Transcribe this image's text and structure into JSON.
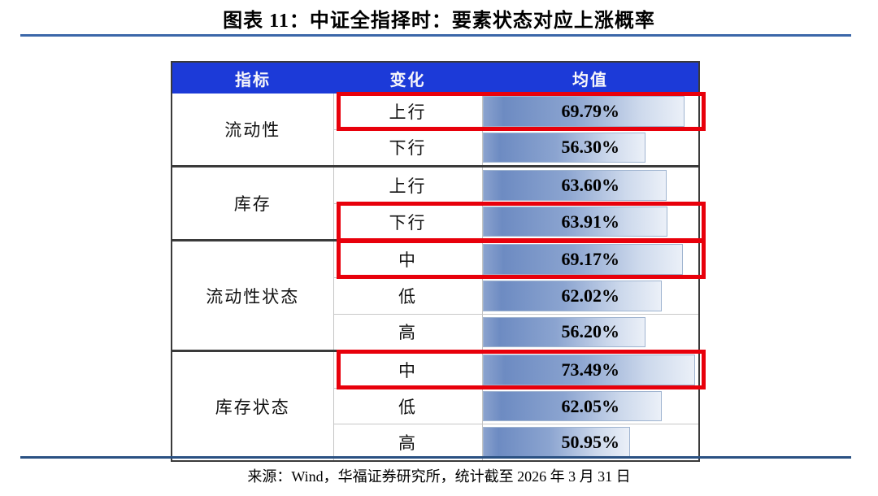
{
  "page": {
    "title": "图表 11：中证全指择时：要素状态对应上涨概率",
    "source": "来源：Wind，华福证券研究所，统计截至 2026 年 3 月 31 日"
  },
  "table": {
    "headers": [
      "指标",
      "变化",
      "均值"
    ],
    "bar_scale_max": 74.6
  },
  "colors": {
    "header_bg": "#1C3AD8",
    "header_text": "#F7F6FA",
    "highlight_box": "#E8000B",
    "bar_gradient_left": "#6D8BC2",
    "bar_gradient_right": "#EBF0F8",
    "bar_border": "#9FB4D0",
    "rule_top": "#3B67A9",
    "rule_bottom": "#2A5183",
    "group_border": "#3A3A3A"
  },
  "chart_data": {
    "type": "table",
    "title": "图表 11：中证全指择时：要素状态对应上涨概率",
    "columns": [
      "指标",
      "变化",
      "均值"
    ],
    "rows": [
      {
        "indicator": "流动性",
        "change": "上行",
        "mean": "69.79%",
        "mean_value": 69.79,
        "highlighted": true
      },
      {
        "indicator": "流动性",
        "change": "下行",
        "mean": "56.30%",
        "mean_value": 56.3,
        "highlighted": false
      },
      {
        "indicator": "库存",
        "change": "上行",
        "mean": "63.60%",
        "mean_value": 63.6,
        "highlighted": false
      },
      {
        "indicator": "库存",
        "change": "下行",
        "mean": "63.91%",
        "mean_value": 63.91,
        "highlighted": true
      },
      {
        "indicator": "流动性状态",
        "change": "中",
        "mean": "69.17%",
        "mean_value": 69.17,
        "highlighted": true
      },
      {
        "indicator": "流动性状态",
        "change": "低",
        "mean": "62.02%",
        "mean_value": 62.02,
        "highlighted": false
      },
      {
        "indicator": "流动性状态",
        "change": "高",
        "mean": "56.20%",
        "mean_value": 56.2,
        "highlighted": false
      },
      {
        "indicator": "库存状态",
        "change": "中",
        "mean": "73.49%",
        "mean_value": 73.49,
        "highlighted": true
      },
      {
        "indicator": "库存状态",
        "change": "低",
        "mean": "62.05%",
        "mean_value": 62.05,
        "highlighted": false
      },
      {
        "indicator": "库存状态",
        "change": "高",
        "mean": "50.95%",
        "mean_value": 50.95,
        "highlighted": false
      }
    ],
    "source": "Wind，华福证券研究所，统计截至 2026 年 3 月 31 日"
  }
}
